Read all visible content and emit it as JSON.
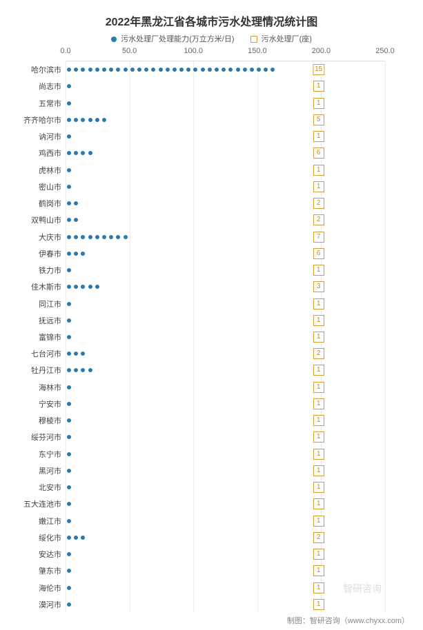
{
  "chart": {
    "type": "dot-strip",
    "title": "2022年黑龙江省各城市污水处理情况统计图",
    "title_fontsize": 16,
    "title_color": "#333333",
    "background_color": "#ffffff",
    "grid_color": "#eeeeee",
    "axis_color": "#dddddd",
    "label_fontsize": 11,
    "label_color": "#444444",
    "xlim": [
      0,
      250
    ],
    "xticks": [
      0,
      50,
      100,
      150,
      200,
      250
    ],
    "xtick_labels": [
      "0.0",
      "50.0",
      "100.0",
      "150.0",
      "200.0",
      "250.0"
    ],
    "dot_color": "#2a7ab0",
    "dot_spacing_value": 5.5,
    "badge_border": "#d4a030",
    "badge_text_color": "#c09020",
    "badge_x_value": 198,
    "legend": {
      "capacity": {
        "label": "污水处理厂处理能力(万立方米/日)",
        "color": "#2a7ab0",
        "marker": "dot"
      },
      "plants": {
        "label": "污水处理厂(座)",
        "color": "#d4a030",
        "marker": "square"
      }
    },
    "rows": [
      {
        "city": "哈尔滨市",
        "capacity": 165,
        "plants": 15
      },
      {
        "city": "尚志市",
        "capacity": 4,
        "plants": 1
      },
      {
        "city": "五常市",
        "capacity": 4,
        "plants": 1
      },
      {
        "city": "齐齐哈尔市",
        "capacity": 32,
        "plants": 5
      },
      {
        "city": "讷河市",
        "capacity": 3,
        "plants": 1
      },
      {
        "city": "鸡西市",
        "capacity": 24,
        "plants": 6
      },
      {
        "city": "虎林市",
        "capacity": 2,
        "plants": 1
      },
      {
        "city": "密山市",
        "capacity": 3,
        "plants": 1
      },
      {
        "city": "鹤岗市",
        "capacity": 12,
        "plants": 2
      },
      {
        "city": "双鸭山市",
        "capacity": 10,
        "plants": 2
      },
      {
        "city": "大庆市",
        "capacity": 48,
        "plants": 7
      },
      {
        "city": "伊春市",
        "capacity": 14,
        "plants": 6
      },
      {
        "city": "铁力市",
        "capacity": 3,
        "plants": 1
      },
      {
        "city": "佳木斯市",
        "capacity": 25,
        "plants": 3
      },
      {
        "city": "同江市",
        "capacity": 3,
        "plants": 1
      },
      {
        "city": "抚远市",
        "capacity": 2,
        "plants": 1
      },
      {
        "city": "富锦市",
        "capacity": 3,
        "plants": 1
      },
      {
        "city": "七台河市",
        "capacity": 14,
        "plants": 2
      },
      {
        "city": "牡丹江市",
        "capacity": 20,
        "plants": 1
      },
      {
        "city": "海林市",
        "capacity": 4,
        "plants": 1
      },
      {
        "city": "宁安市",
        "capacity": 3,
        "plants": 1
      },
      {
        "city": "穆棱市",
        "capacity": 3,
        "plants": 1
      },
      {
        "city": "绥芬河市",
        "capacity": 3,
        "plants": 1
      },
      {
        "city": "东宁市",
        "capacity": 3,
        "plants": 1
      },
      {
        "city": "黑河市",
        "capacity": 5,
        "plants": 1
      },
      {
        "city": "北安市",
        "capacity": 3,
        "plants": 1
      },
      {
        "city": "五大连池市",
        "capacity": 3,
        "plants": 1
      },
      {
        "city": "嫩江市",
        "capacity": 3,
        "plants": 1
      },
      {
        "city": "绥化市",
        "capacity": 15,
        "plants": 2
      },
      {
        "city": "安达市",
        "capacity": 5,
        "plants": 1
      },
      {
        "city": "肇东市",
        "capacity": 5,
        "plants": 1
      },
      {
        "city": "海伦市",
        "capacity": 5,
        "plants": 1
      },
      {
        "city": "漠河市",
        "capacity": 2,
        "plants": 1
      }
    ],
    "footer": "制图：智研咨询（www.chyxx.com）",
    "watermark": "智研咨询"
  }
}
